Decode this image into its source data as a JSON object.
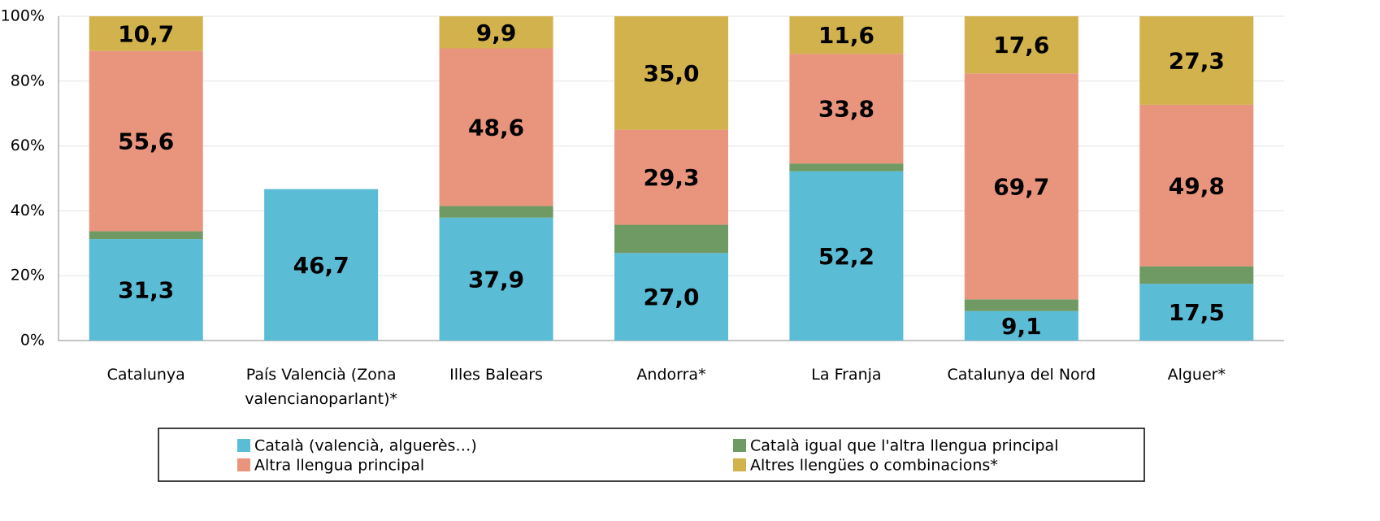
{
  "chart_data": {
    "type": "stacked_bar",
    "categories": [
      "Catalunya",
      "País Valencià (Zona valencianoparlant)*",
      "Illes Balears",
      "Andorra*",
      "La Franja",
      "Catalunya del Nord",
      "Alguer*"
    ],
    "series": [
      {
        "name": "Català (valencià, alguerès…)",
        "color": "#5bbcd6",
        "values": [
          31.3,
          46.7,
          37.9,
          27.0,
          52.2,
          9.1,
          17.5
        ],
        "value_labels": [
          "31,3",
          "46,7",
          "37,9",
          "27,0",
          "52,2",
          "9,1",
          "17,5"
        ]
      },
      {
        "name": "Català igual que l'altra llengua principal",
        "color": "#6f9a63",
        "values": [
          2.4,
          null,
          3.6,
          8.7,
          2.4,
          3.6,
          5.4
        ]
      },
      {
        "name": "Altra llengua principal",
        "color": "#e9957e",
        "values": [
          55.6,
          null,
          48.6,
          29.3,
          33.8,
          69.7,
          49.8
        ],
        "value_labels": [
          "55,6",
          null,
          "48,6",
          "29,3",
          "33,8",
          "69,7",
          "49,8"
        ]
      },
      {
        "name": "Altres llengües o combinacions*",
        "color": "#d2b24c",
        "values": [
          10.7,
          null,
          9.9,
          35.0,
          11.6,
          17.6,
          27.3
        ],
        "value_labels": [
          "10,7",
          null,
          "9,9",
          "35,0",
          "11,6",
          "17,6",
          "27,3"
        ]
      }
    ],
    "ylim": [
      0,
      100
    ],
    "yticks": [
      {
        "value": 0,
        "label": "0%"
      },
      {
        "value": 20,
        "label": "20%"
      },
      {
        "value": 40,
        "label": "40%"
      },
      {
        "value": 60,
        "label": "60%"
      },
      {
        "value": 80,
        "label": "80%"
      },
      {
        "value": 100,
        "label": "100%"
      }
    ],
    "grid": true
  }
}
